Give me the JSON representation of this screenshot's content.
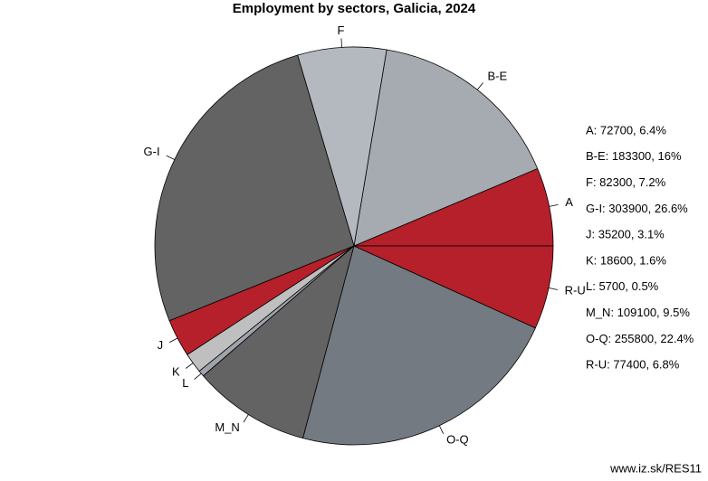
{
  "chart_data": {
    "type": "pie",
    "title": "Employment by sectors, Galicia, 2024",
    "categories": [
      "A",
      "B-E",
      "F",
      "G-I",
      "J",
      "K",
      "L",
      "M_N",
      "O-Q",
      "R-U"
    ],
    "values": [
      72700,
      183300,
      82300,
      303900,
      35200,
      18600,
      5700,
      109100,
      255800,
      77400
    ],
    "value_labels": [
      "A: 72700, 6.4%",
      "B-E: 183300, 16%",
      "F: 82300, 7.2%",
      "G-I: 303900, 26.6%",
      "J: 35200, 3.1%",
      "K: 18600, 1.6%",
      "L: 5700, 0.5%",
      "M_N: 109100, 9.5%",
      "O-Q: 255800, 22.4%",
      "R-U: 77400, 6.8%"
    ],
    "colors": [
      "#b5202a",
      "#a6abb2",
      "#b4b9c0",
      "#636363",
      "#b5202a",
      "#bfbfbf",
      "#9fa4ab",
      "#636363",
      "#737a81",
      "#b5202a"
    ],
    "source": "www.iz.sk/RES11"
  }
}
